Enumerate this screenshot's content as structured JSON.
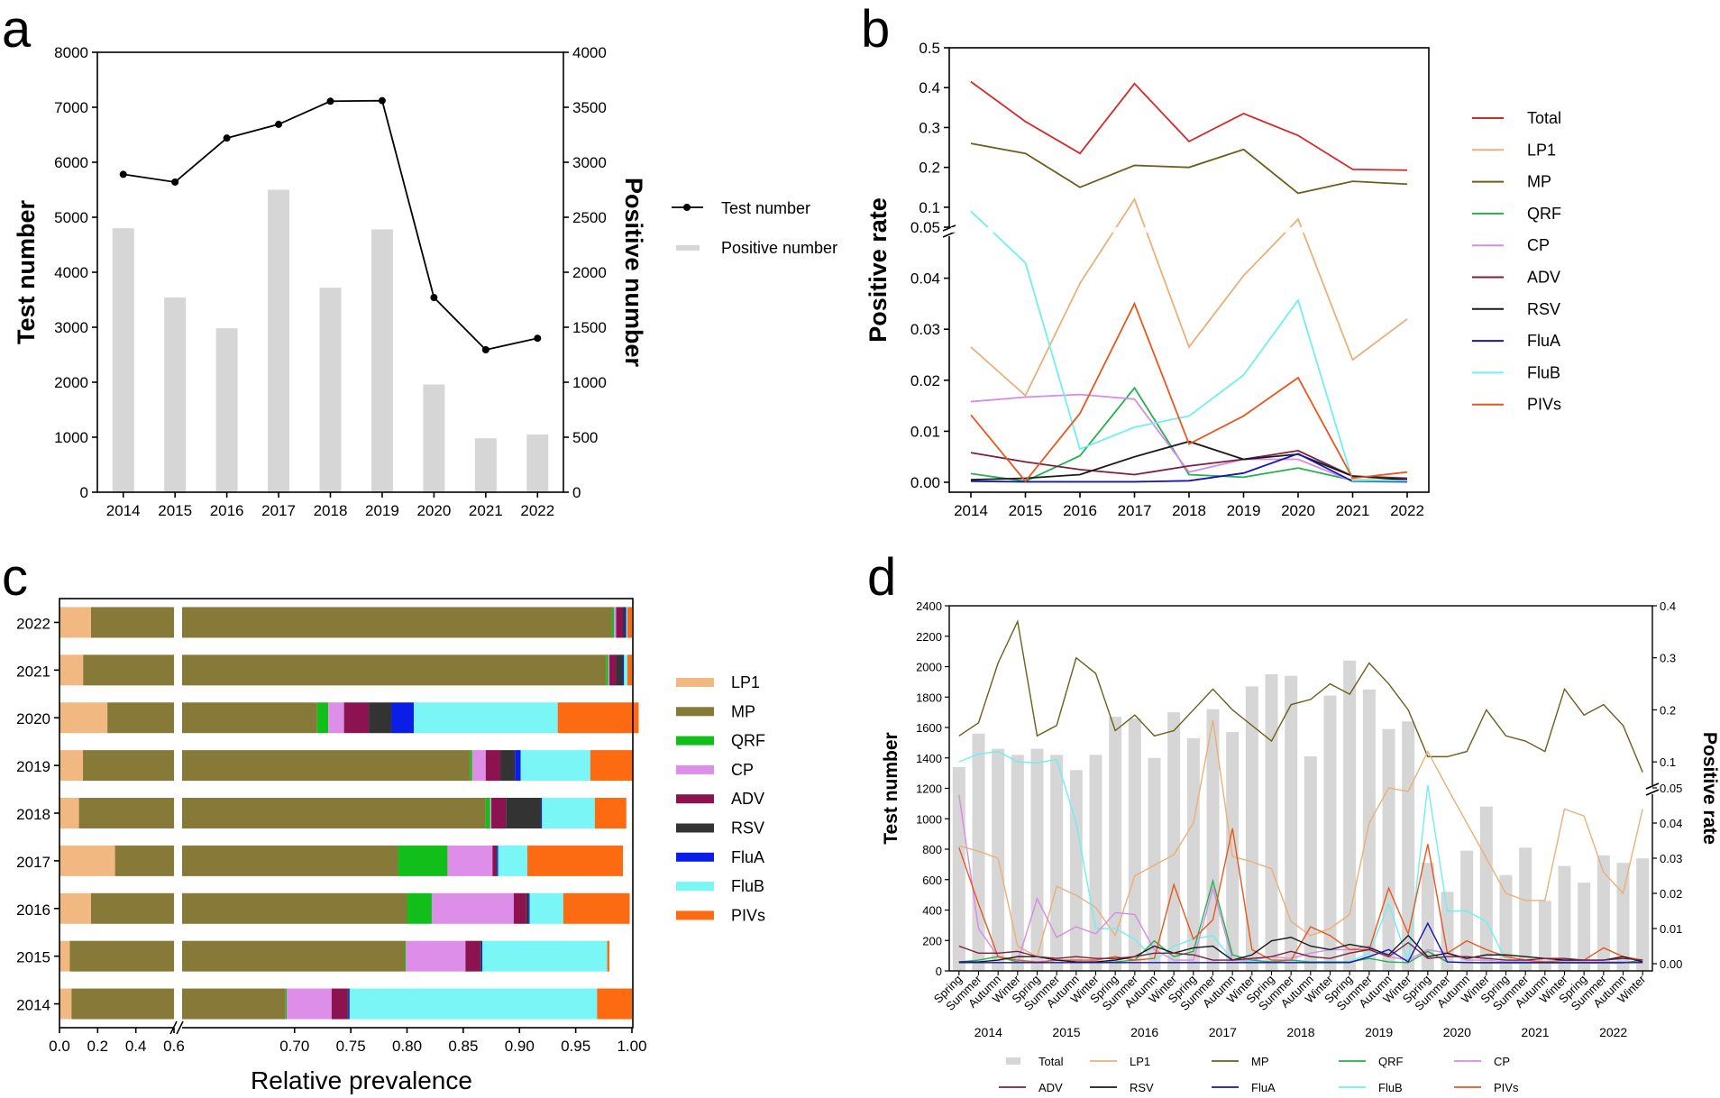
{
  "panel_labels": {
    "a": "a",
    "b": "b",
    "c": "c",
    "d": "d"
  },
  "colors": {
    "Total": "#d42a2a",
    "LP1": "#eab078",
    "MP": "#6b5f1c",
    "QRF": "#22b14c",
    "CP": "#d68be6",
    "ADV": "#7d1f40",
    "RSV": "#1a1a1a",
    "FluA": "#1515b5",
    "FluB": "#6ef0f0",
    "PIVs": "#e8571e",
    "bar_gray": "#d6d6d6",
    "c_LP1": "#f2b882",
    "c_MP": "#877a38",
    "c_QRF": "#12bf1a",
    "c_CP": "#dc8ee8",
    "c_ADV": "#8c1250",
    "c_RSV": "#333333",
    "c_FluA": "#0b1ee8",
    "c_FluB": "#7af6f6",
    "c_PIVs": "#fc6a12"
  },
  "chart_data": [
    {
      "id": "a",
      "type": "bar+line",
      "title": "",
      "categories": [
        "2014",
        "2015",
        "2016",
        "2017",
        "2018",
        "2019",
        "2020",
        "2021",
        "2022"
      ],
      "ylabel": "Test number",
      "y2label": "Positive number",
      "ylim": [
        0,
        8000
      ],
      "y2lim": [
        0,
        4000
      ],
      "yticks": [
        "0",
        "1000",
        "2000",
        "3000",
        "4000",
        "5000",
        "6000",
        "7000",
        "8000"
      ],
      "y2ticks": [
        "0",
        "500",
        "1000",
        "1500",
        "2000",
        "2500",
        "3000",
        "3500",
        "4000"
      ],
      "series": [
        {
          "name": "Test number",
          "kind": "line",
          "axis": "left",
          "values": [
            5780,
            5640,
            6440,
            6690,
            7110,
            7120,
            3540,
            2590,
            2800
          ]
        },
        {
          "name": "Positive number",
          "kind": "bar",
          "axis": "right",
          "values": [
            2400,
            1770,
            1490,
            2750,
            1860,
            2390,
            980,
            490,
            525
          ]
        }
      ],
      "legend": [
        "Test number",
        "Positive number"
      ]
    },
    {
      "id": "b",
      "type": "line",
      "categories": [
        "2014",
        "2015",
        "2016",
        "2017",
        "2018",
        "2019",
        "2020",
        "2021",
        "2022"
      ],
      "ylabel": "Positive rate",
      "ylim_lower": [
        0,
        0.05
      ],
      "ylim_upper": [
        0.05,
        0.5
      ],
      "yticks_lower": [
        "0.00",
        "0.01",
        "0.02",
        "0.03",
        "0.04",
        "0.05"
      ],
      "yticks_upper": [
        "0.1",
        "0.2",
        "0.3",
        "0.4",
        "0.5"
      ],
      "series": [
        {
          "name": "Total",
          "values": [
            0.415,
            0.315,
            0.235,
            0.41,
            0.265,
            0.335,
            0.28,
            0.195,
            0.193
          ]
        },
        {
          "name": "LP1",
          "values": [
            0.0265,
            0.017,
            0.039,
            0.12,
            0.0265,
            0.0405,
            0.07,
            0.024,
            0.032
          ]
        },
        {
          "name": "MP",
          "values": [
            0.26,
            0.235,
            0.15,
            0.205,
            0.2,
            0.245,
            0.135,
            0.165,
            0.158
          ]
        },
        {
          "name": "QRF",
          "values": [
            0.0017,
            0.0002,
            0.0052,
            0.0185,
            0.0015,
            0.001,
            0.0028,
            0.0004,
            0.0004
          ]
        },
        {
          "name": "CP",
          "values": [
            0.0158,
            0.0167,
            0.0172,
            0.0163,
            0.002,
            0.0045,
            0.0045,
            0.0002,
            0.0002
          ]
        },
        {
          "name": "ADV",
          "values": [
            0.0058,
            0.004,
            0.0025,
            0.0015,
            0.0032,
            0.0045,
            0.0062,
            0.0012,
            0.0008
          ]
        },
        {
          "name": "RSV",
          "values": [
            0.0005,
            0.0008,
            0.0015,
            0.005,
            0.008,
            0.0045,
            0.0055,
            0.0012,
            0.0005
          ]
        },
        {
          "name": "FluA",
          "values": [
            0.0002,
            0.0001,
            0.0001,
            0.0001,
            0.0003,
            0.0018,
            0.0056,
            0.0002,
            0.0001
          ]
        },
        {
          "name": "FluB",
          "values": [
            0.09,
            0.043,
            0.0065,
            0.0108,
            0.013,
            0.021,
            0.0357,
            0.0003,
            0.0003
          ]
        },
        {
          "name": "PIVs",
          "values": [
            0.0132,
            0.0002,
            0.0135,
            0.035,
            0.0075,
            0.013,
            0.0205,
            0.0008,
            0.002
          ]
        }
      ]
    },
    {
      "id": "c",
      "type": "stacked-bar-horizontal",
      "xlabel": "Relative prevalence",
      "categories": [
        "2022",
        "2021",
        "2020",
        "2019",
        "2018",
        "2017",
        "2016",
        "2015",
        "2014"
      ],
      "xticks_left": [
        "0.0",
        "0.2",
        "0.4",
        "0.6"
      ],
      "xticks_right": [
        "0.70",
        "0.75",
        "0.80",
        "0.85",
        "0.90",
        "0.95",
        "1.00"
      ],
      "axis_break_left": [
        0,
        0.6
      ],
      "axis_break_right": [
        0.6,
        1.0
      ],
      "series_names": [
        "LP1",
        "MP",
        "QRF",
        "CP",
        "ADV",
        "RSV",
        "FluA",
        "FluB",
        "PIVs"
      ],
      "rows": [
        {
          "year": "2022",
          "values": [
            0.165,
            0.817,
            0.002,
            0.002,
            0.006,
            0.002,
            0.001,
            0.001,
            0.004
          ]
        },
        {
          "year": "2021",
          "values": [
            0.124,
            0.853,
            0.002,
            0.001,
            0.006,
            0.006,
            0.001,
            0.003,
            0.004
          ]
        },
        {
          "year": "2020",
          "values": [
            0.251,
            0.469,
            0.01,
            0.014,
            0.022,
            0.02,
            0.02,
            0.128,
            0.072
          ]
        },
        {
          "year": "2019",
          "values": [
            0.123,
            0.733,
            0.002,
            0.012,
            0.013,
            0.013,
            0.005,
            0.062,
            0.038
          ]
        },
        {
          "year": "2018",
          "values": [
            0.102,
            0.768,
            0.004,
            0.001,
            0.013,
            0.031,
            0.001,
            0.047,
            0.028
          ]
        },
        {
          "year": "2017",
          "values": [
            0.291,
            0.501,
            0.044,
            0.04,
            0.003,
            0.001,
            0.001,
            0.026,
            0.085
          ]
        },
        {
          "year": "2016",
          "values": [
            0.165,
            0.635,
            0.022,
            0.073,
            0.011,
            0.002,
            0.001,
            0.03,
            0.059
          ]
        },
        {
          "year": "2015",
          "values": [
            0.054,
            0.744,
            0.001,
            0.053,
            0.013,
            0.001,
            0.001,
            0.111,
            0.002
          ]
        },
        {
          "year": "2014",
          "values": [
            0.063,
            0.629,
            0.001,
            0.04,
            0.014,
            0.001,
            0.001,
            0.22,
            0.031
          ]
        }
      ],
      "legend": [
        "LP1",
        "MP",
        "QRF",
        "CP",
        "ADV",
        "RSV",
        "FluA",
        "FluB",
        "PIVs"
      ]
    },
    {
      "id": "d",
      "type": "bar+line",
      "ylabel": "Test number",
      "y2label": "Positive rate",
      "ylim": [
        0,
        2400
      ],
      "yticks": [
        "0",
        "200",
        "400",
        "600",
        "800",
        "1000",
        "1200",
        "1400",
        "1600",
        "1800",
        "2000",
        "2200",
        "2400"
      ],
      "y2ticks_lower": [
        "0.00",
        "0.01",
        "0.02",
        "0.03",
        "0.04",
        "0.05"
      ],
      "y2ticks_upper": [
        "0.1",
        "0.2",
        "0.3",
        "0.4"
      ],
      "seasons": [
        "Spring",
        "Summer",
        "Autumn",
        "Winter"
      ],
      "years": [
        "2014",
        "2015",
        "2016",
        "2017",
        "2018",
        "2019",
        "2020",
        "2021",
        "2022"
      ],
      "bars": {
        "name": "Total",
        "values": [
          1340,
          1560,
          1460,
          1420,
          1460,
          1420,
          1320,
          1420,
          1670,
          1660,
          1400,
          1700,
          1530,
          1720,
          1570,
          1870,
          1950,
          1940,
          1410,
          1810,
          2040,
          1850,
          1590,
          1640,
          710,
          520,
          790,
          1080,
          630,
          810,
          460,
          690,
          580,
          760,
          710,
          740
        ]
      },
      "series": [
        {
          "name": "LP1",
          "values": [
            0.0335,
            0.032,
            0.03,
            0.005,
            0.002,
            0.022,
            0.0195,
            0.016,
            0.008,
            0.025,
            0.028,
            0.031,
            0.04,
            0.18,
            0.0305,
            0.029,
            0.027,
            0.012,
            0.008,
            0.01,
            0.014,
            0.04,
            0.05,
            0.049,
            0.12,
            0.05,
            0.04,
            0.03,
            0.02,
            0.018,
            0.018,
            0.044,
            0.042,
            0.026,
            0.02,
            0.044
          ]
        },
        {
          "name": "MP",
          "values": [
            0.15,
            0.175,
            0.29,
            0.37,
            0.15,
            0.17,
            0.3,
            0.27,
            0.16,
            0.19,
            0.15,
            0.16,
            0.2,
            0.24,
            0.2,
            0.17,
            0.14,
            0.21,
            0.22,
            0.25,
            0.23,
            0.29,
            0.25,
            0.2,
            0.11,
            0.11,
            0.12,
            0.2,
            0.15,
            0.14,
            0.12,
            0.24,
            0.19,
            0.21,
            0.17,
            0.08
          ]
        },
        {
          "name": "QRF",
          "values": [
            0.0005,
            0.001,
            0.002,
            0.0005,
            0.0003,
            0.001,
            0.0005,
            0.0003,
            0.0005,
            0.001,
            0.0065,
            0.002,
            0.0035,
            0.0235,
            0.0025,
            0.001,
            0.0005,
            0.001,
            0.0005,
            0.0005,
            0.0005,
            0.0015,
            0.0005,
            0.0003,
            0.0035,
            0.0005,
            0.0003,
            0.0002,
            0.0002,
            0.0002,
            0.0002,
            0.0002,
            0.0002,
            0.0002,
            0.0002,
            0.001
          ]
        },
        {
          "name": "CP",
          "values": [
            0.048,
            0.01,
            0.002,
            0.0005,
            0.0185,
            0.0075,
            0.0105,
            0.0085,
            0.0145,
            0.014,
            0.004,
            0.001,
            0.001,
            0.0215,
            0.001,
            0.001,
            0.002,
            0.0015,
            0.003,
            0.004,
            0.004,
            0.005,
            0.002,
            0.001,
            0.004,
            0.003,
            0.001,
            0.001,
            0.0005,
            0.0005,
            0.0005,
            0.0005,
            0.0005,
            0.0005,
            0.0005,
            0.0005
          ]
        },
        {
          "name": "ADV",
          "values": [
            0.005,
            0.003,
            0.003,
            0.0035,
            0.002,
            0.0015,
            0.002,
            0.0015,
            0.0015,
            0.002,
            0.003,
            0.003,
            0.0025,
            0.001,
            0.001,
            0.0015,
            0.002,
            0.0035,
            0.002,
            0.0015,
            0.003,
            0.004,
            0.002,
            0.006,
            0.0015,
            0.002,
            0.002,
            0.0015,
            0.001,
            0.001,
            0.0015,
            0.0015,
            0.001,
            0.001,
            0.0015,
            0.001
          ]
        },
        {
          "name": "RSV",
          "values": [
            0.0005,
            0.0005,
            0.001,
            0.002,
            0.002,
            0.001,
            0.0005,
            0.0005,
            0.001,
            0.002,
            0.005,
            0.003,
            0.0045,
            0.005,
            0.001,
            0.0025,
            0.0065,
            0.0075,
            0.005,
            0.004,
            0.0055,
            0.0045,
            0.0025,
            0.008,
            0.002,
            0.003,
            0.0015,
            0.0025,
            0.0025,
            0.002,
            0.0015,
            0.001,
            0.001,
            0.001,
            0.002,
            0.0005
          ]
        },
        {
          "name": "FluA",
          "values": [
            0.0003,
            0.0003,
            0.0003,
            0.0003,
            0.0003,
            0.0003,
            0.0003,
            0.0003,
            0.0003,
            0.0003,
            0.0003,
            0.0003,
            0.0003,
            0.0003,
            0.0003,
            0.0003,
            0.0003,
            0.0003,
            0.0003,
            0.0003,
            0.0003,
            0.002,
            0.004,
            0.0005,
            0.0115,
            0.0005,
            0.0003,
            0.0003,
            0.0003,
            0.0003,
            0.0003,
            0.0003,
            0.0003,
            0.0003,
            0.0003,
            0.0003
          ]
        },
        {
          "name": "FluB",
          "values": [
            0.1,
            0.115,
            0.12,
            0.1,
            0.098,
            0.105,
            0.04,
            0.01,
            0.01,
            0.007,
            0.001,
            0.005,
            0.007,
            0.008,
            0.001,
            0.0005,
            0.0005,
            0.0005,
            0.0005,
            0.0005,
            0.0005,
            0.003,
            0.017,
            0.0005,
            0.0555,
            0.015,
            0.015,
            0.012,
            0.001,
            0.0005,
            0.0005,
            0.0005,
            0.0005,
            0.0005,
            0.0005,
            0.0005
          ]
        },
        {
          "name": "PIVs",
          "values": [
            0.033,
            0.017,
            0.002,
            0.001,
            0.0005,
            0.001,
            0.001,
            0.001,
            0.002,
            0.001,
            0.0015,
            0.0225,
            0.007,
            0.0125,
            0.0385,
            0.004,
            0.001,
            0.001,
            0.0105,
            0.008,
            0.004,
            0.004,
            0.0215,
            0.0085,
            0.034,
            0.003,
            0.0065,
            0.004,
            0.002,
            0.001,
            0.0005,
            0.001,
            0.001,
            0.0045,
            0.002,
            0.001
          ]
        }
      ],
      "legend": [
        "Total",
        "LP1",
        "MP",
        "QRF",
        "CP",
        "ADV",
        "RSV",
        "FluA",
        "FluB",
        "PIVs"
      ]
    }
  ]
}
